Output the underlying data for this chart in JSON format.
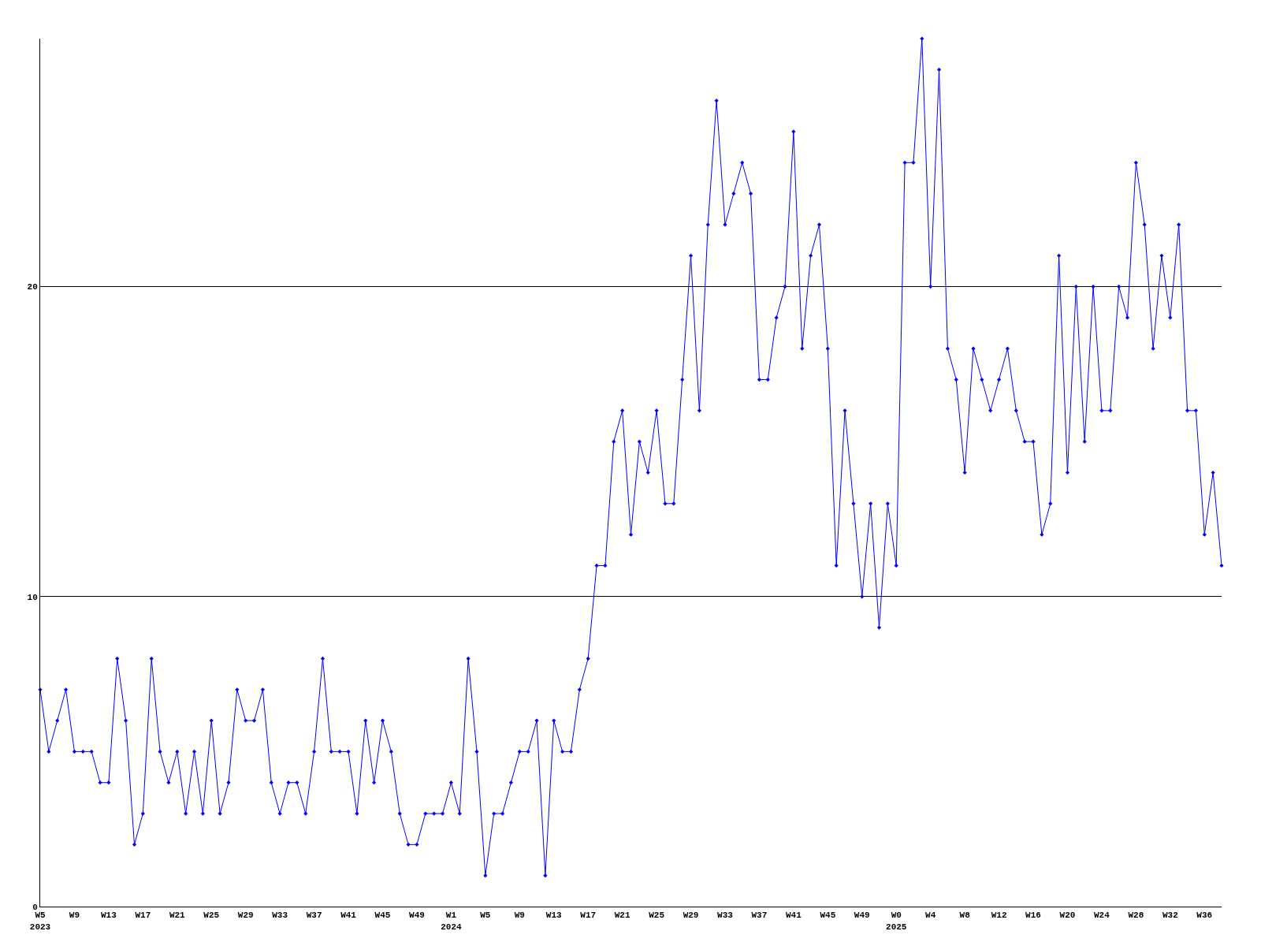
{
  "chart_data": {
    "type": "line",
    "categories": [
      "W5\n2023",
      null,
      null,
      null,
      "W9",
      null,
      null,
      null,
      "W13",
      null,
      null,
      null,
      "W17",
      null,
      null,
      null,
      "W21",
      null,
      null,
      null,
      "W25",
      null,
      null,
      null,
      "W29",
      null,
      null,
      null,
      "W33",
      null,
      null,
      null,
      "W37",
      null,
      null,
      null,
      "W41",
      null,
      null,
      null,
      "W45",
      null,
      null,
      null,
      "W49",
      null,
      null,
      null,
      "W1\n2024",
      null,
      null,
      null,
      "W5",
      null,
      null,
      null,
      "W9",
      null,
      null,
      null,
      "W13",
      null,
      null,
      null,
      "W17",
      null,
      null,
      null,
      "W21",
      null,
      null,
      null,
      "W25",
      null,
      null,
      null,
      "W29",
      null,
      null,
      null,
      "W33",
      null,
      null,
      null,
      "W37",
      null,
      null,
      null,
      "W41",
      null,
      null,
      null,
      "W45",
      null,
      null,
      null,
      "W49",
      null,
      null,
      null,
      "W0\n2025",
      null,
      null,
      null,
      "W4",
      null,
      null,
      null,
      "W8",
      null,
      null,
      null,
      "W12",
      null,
      null,
      null,
      "W16",
      null,
      null,
      null,
      "W20",
      null,
      null,
      null,
      "W24",
      null,
      null,
      null,
      "W28",
      null,
      null,
      null,
      "W32",
      null,
      null,
      null,
      "W36",
      null,
      null
    ],
    "series": [
      {
        "color": "#0000ff",
        "values": [
          7,
          5,
          6,
          7,
          5,
          5,
          5,
          4,
          4,
          8,
          6,
          2,
          3,
          8,
          5,
          4,
          5,
          3,
          5,
          3,
          6,
          3,
          4,
          7,
          6,
          6,
          7,
          4,
          3,
          4,
          4,
          3,
          5,
          8,
          5,
          5,
          5,
          3,
          6,
          4,
          6,
          5,
          3,
          2,
          2,
          3,
          3,
          3,
          4,
          3,
          8,
          5,
          1,
          3,
          3,
          4,
          5,
          5,
          6,
          1,
          6,
          5,
          5,
          7,
          8,
          11,
          11,
          15,
          16,
          12,
          15,
          14,
          16,
          13,
          13,
          17,
          21,
          16,
          22,
          26,
          22,
          23,
          24,
          23,
          17,
          17,
          19,
          20,
          25,
          18,
          21,
          22,
          18,
          11,
          16,
          13,
          10,
          13,
          9,
          13,
          11,
          24,
          24,
          28,
          20,
          27,
          18,
          17,
          14,
          18,
          17,
          16,
          17,
          18,
          16,
          15,
          15,
          12,
          13,
          21,
          14,
          20,
          15,
          20,
          16,
          16,
          20,
          19,
          24,
          22,
          18,
          21,
          19,
          22,
          16,
          16,
          12,
          14,
          11
        ]
      }
    ],
    "ylim": [
      0,
      28
    ],
    "yticks": [
      0,
      10,
      20
    ],
    "grid": "y",
    "marker": "diamond",
    "line_style": "solid"
  }
}
